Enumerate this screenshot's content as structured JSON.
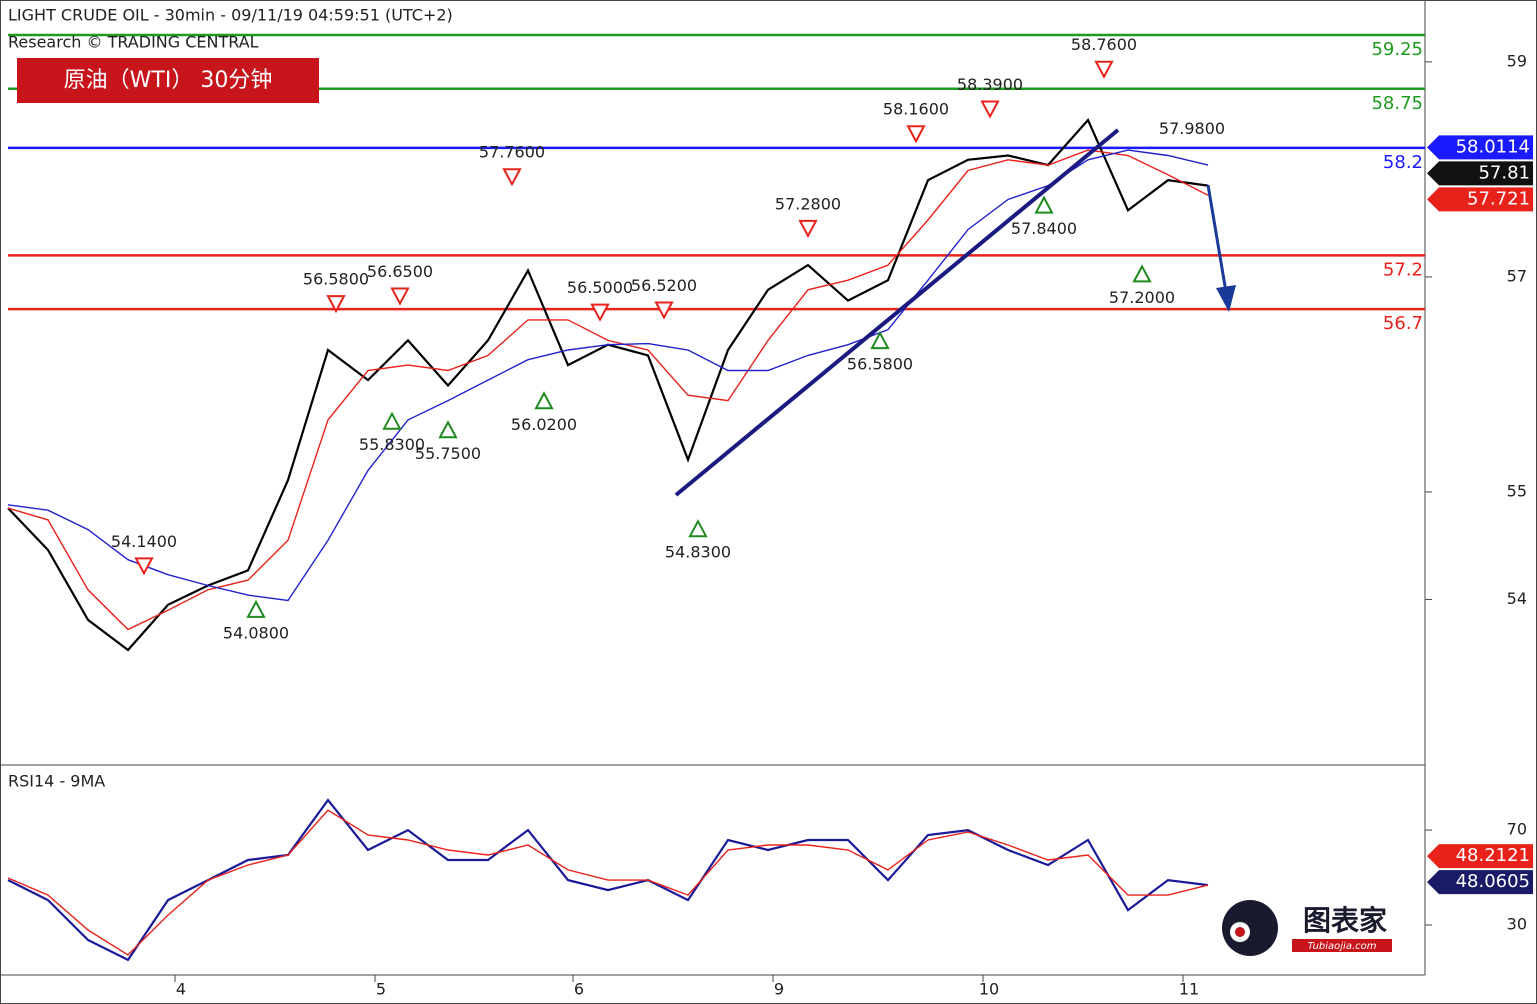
{
  "chart_data": [
    {
      "type": "line",
      "title": "LIGHT CRUDE OIL - 30min - 09/11/19 04:59:51 (UTC+2)",
      "subtitle": "Research © TRADING CENTRAL",
      "badge": "原油（WTI） 30分钟",
      "x": [
        0,
        1,
        2,
        3,
        4,
        5,
        6,
        7,
        8,
        9,
        10,
        11,
        12,
        13,
        14,
        15,
        16,
        17,
        18,
        19,
        20,
        21,
        22,
        23,
        24,
        25,
        26,
        27,
        28,
        29,
        30
      ],
      "xlim": [
        0,
        35.425
      ],
      "ylim": [
        52.46,
        59.576
      ],
      "yticks": [
        54,
        55,
        57,
        59
      ],
      "series": [
        {
          "name": "price",
          "color": "#000000",
          "values": [
            54.85,
            54.46,
            53.81,
            53.53,
            53.95,
            54.13,
            54.27,
            55.11,
            56.32,
            56.04,
            56.41,
            55.99,
            56.41,
            57.06,
            56.18,
            56.37,
            56.27,
            55.3,
            56.32,
            56.88,
            57.11,
            56.78,
            56.97,
            57.9,
            58.09,
            58.13,
            58.04,
            58.46,
            57.62,
            57.9,
            57.85
          ]
        },
        {
          "name": "ma-fast",
          "color": "#e8221b",
          "values": [
            54.85,
            54.74,
            54.09,
            53.72,
            53.9,
            54.09,
            54.18,
            54.55,
            55.67,
            56.13,
            56.18,
            56.13,
            56.27,
            56.6,
            56.6,
            56.41,
            56.32,
            55.9,
            55.85,
            56.41,
            56.88,
            56.97,
            57.11,
            57.53,
            57.99,
            58.09,
            58.04,
            58.18,
            58.13,
            57.95,
            57.76
          ]
        },
        {
          "name": "ma-slow",
          "color": "#2222cc",
          "values": [
            54.88,
            54.83,
            54.65,
            54.37,
            54.23,
            54.13,
            54.04,
            53.99,
            54.55,
            55.2,
            55.67,
            55.85,
            56.04,
            56.23,
            56.32,
            56.37,
            56.38,
            56.32,
            56.13,
            56.13,
            56.27,
            56.37,
            56.51,
            56.97,
            57.44,
            57.72,
            57.85,
            58.09,
            58.18,
            58.13,
            58.04
          ]
        }
      ],
      "levels": [
        {
          "value": 59.25,
          "color": "#1e9a1e"
        },
        {
          "value": 58.75,
          "color": "#1e9a1e"
        },
        {
          "value": 58.2,
          "color": "#1a1aff"
        },
        {
          "value": 57.2,
          "color": "#e8221b"
        },
        {
          "value": 56.7,
          "color": "#e8221b"
        }
      ],
      "price_labels": [
        {
          "value": 58.0114,
          "color": "#1a1aff"
        },
        {
          "value": 57.81,
          "color": "#111111"
        },
        {
          "value": 57.721,
          "color": "#e8221b"
        }
      ],
      "annotations": [
        {
          "value": 54.14,
          "label": "54.1400",
          "x": 3.4,
          "dir": "down"
        },
        {
          "value": 56.58,
          "label": "56.5800",
          "x": 8.2,
          "dir": "down"
        },
        {
          "value": 56.65,
          "label": "56.6500",
          "x": 9.8,
          "dir": "down"
        },
        {
          "value": 57.76,
          "label": "57.7600",
          "x": 12.6,
          "dir": "down"
        },
        {
          "value": 56.5,
          "label": "56.5000",
          "x": 14.8,
          "dir": "down"
        },
        {
          "value": 56.52,
          "label": "56.5200",
          "x": 16.4,
          "dir": "down"
        },
        {
          "value": 57.28,
          "label": "57.2800",
          "x": 20.0,
          "dir": "down"
        },
        {
          "value": 58.16,
          "label": "58.1600",
          "x": 22.7,
          "dir": "down"
        },
        {
          "value": 58.39,
          "label": "58.3900",
          "x": 24.55,
          "dir": "down"
        },
        {
          "value": 58.76,
          "label": "58.7600",
          "x": 27.4,
          "dir": "down"
        },
        {
          "value": 57.98,
          "label": "57.9800",
          "x": 29.6,
          "dir": "none"
        },
        {
          "value": 54.08,
          "label": "54.0800",
          "x": 6.2,
          "dir": "up"
        },
        {
          "value": 55.83,
          "label": "55.8300",
          "x": 9.6,
          "dir": "up"
        },
        {
          "value": 55.75,
          "label": "55.7500",
          "x": 11.0,
          "dir": "up"
        },
        {
          "value": 56.02,
          "label": "56.0200",
          "x": 13.4,
          "dir": "up"
        },
        {
          "value": 54.83,
          "label": "54.8300",
          "x": 17.25,
          "dir": "up"
        },
        {
          "value": 56.58,
          "label": "56.5800",
          "x": 21.8,
          "dir": "up"
        },
        {
          "value": 57.84,
          "label": "57.8400",
          "x": 25.9,
          "dir": "up"
        },
        {
          "value": 57.2,
          "label": "57.2000",
          "x": 28.35,
          "dir": "up"
        }
      ]
    },
    {
      "type": "line",
      "title": "RSI14 - 9MA",
      "x": [
        0,
        1,
        2,
        3,
        4,
        5,
        6,
        7,
        8,
        9,
        10,
        11,
        12,
        13,
        14,
        15,
        16,
        17,
        18,
        19,
        20,
        21,
        22,
        23,
        24,
        25,
        26,
        27,
        28,
        29,
        30
      ],
      "xlim": [
        0,
        35.425
      ],
      "xticks": [
        {
          "value": 4.175,
          "label": "4"
        },
        {
          "value": 9.175,
          "label": "5"
        },
        {
          "value": 14.125,
          "label": "6"
        },
        {
          "value": 19.125,
          "label": "9"
        },
        {
          "value": 24.375,
          "label": "10"
        },
        {
          "value": 29.375,
          "label": "11"
        }
      ],
      "ylim": [
        8.95,
        97.4
      ],
      "yticks": [
        30,
        70
      ],
      "series": [
        {
          "name": "rsi",
          "color": "#1a1a99",
          "values": [
            48.9,
            40.5,
            23.7,
            15.3,
            40.5,
            48.9,
            57.4,
            59.5,
            82.6,
            61.6,
            70,
            57.4,
            57.4,
            70,
            48.9,
            44.7,
            48.9,
            40.5,
            65.8,
            61.6,
            65.8,
            65.8,
            48.9,
            67.9,
            70,
            61.6,
            55.3,
            65.8,
            36.3,
            48.9,
            46.8
          ]
        },
        {
          "name": "rsi-ma",
          "color": "#e8221b",
          "values": [
            49.8,
            42.6,
            27.9,
            17.4,
            34.2,
            48.9,
            55.3,
            59.5,
            78.4,
            67.9,
            65.8,
            61.6,
            59.5,
            63.7,
            53.2,
            48.9,
            48.9,
            42.6,
            61.6,
            63.7,
            63.7,
            61.6,
            53.2,
            65.8,
            69.2,
            63.7,
            57.4,
            59.5,
            42.6,
            42.6,
            46.8
          ]
        }
      ],
      "price_labels": [
        {
          "value": 48.2121,
          "color": "#e8221b"
        },
        {
          "value": 48.0605,
          "color": "#1a1a66"
        }
      ]
    }
  ],
  "watermark": {
    "name": "图表家",
    "url": "Tubiaojia.com"
  }
}
